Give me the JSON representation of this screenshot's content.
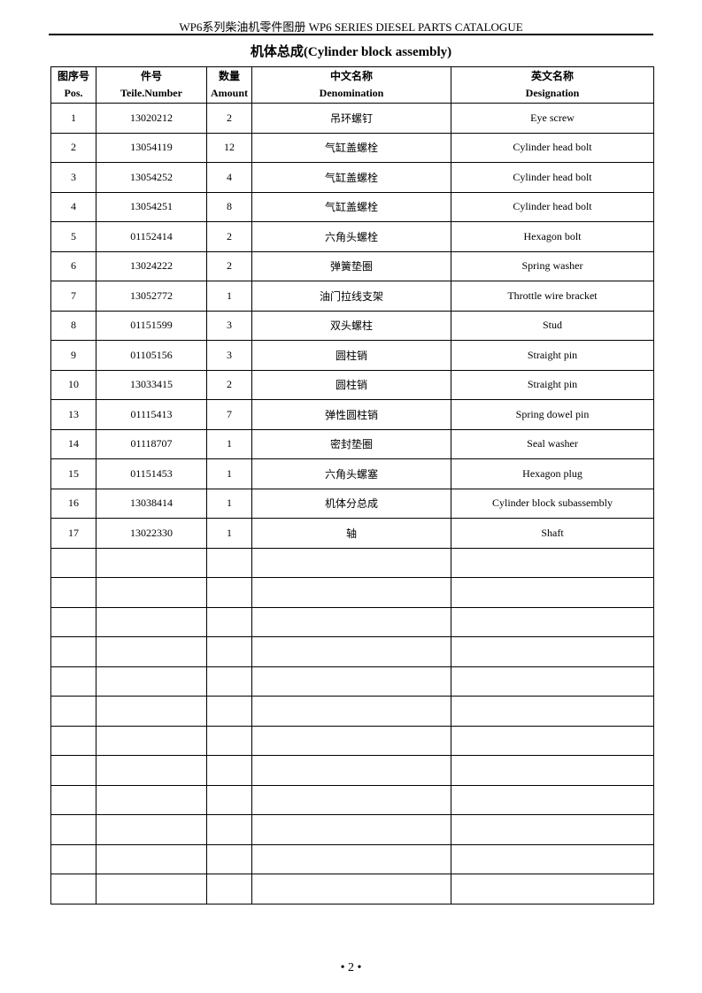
{
  "header": {
    "running_title": "WP6系列柴油机零件图册 WP6 SERIES DIESEL PARTS CATALOGUE"
  },
  "title": "机体总成(Cylinder block assembly)",
  "columns": [
    {
      "cn": "图序号",
      "en": "Pos."
    },
    {
      "cn": "件号",
      "en": "Teile.Number"
    },
    {
      "cn": "数量",
      "en": "Amount"
    },
    {
      "cn": "中文名称",
      "en": "Denomination"
    },
    {
      "cn": "英文名称",
      "en": "Designation"
    }
  ],
  "rows": [
    [
      "1",
      "13020212",
      "2",
      "吊环螺钉",
      "Eye screw"
    ],
    [
      "2",
      "13054119",
      "12",
      "气缸盖螺栓",
      "Cylinder head bolt"
    ],
    [
      "3",
      "13054252",
      "4",
      "气缸盖螺栓",
      "Cylinder head bolt"
    ],
    [
      "4",
      "13054251",
      "8",
      "气缸盖螺栓",
      "Cylinder head bolt"
    ],
    [
      "5",
      "01152414",
      "2",
      "六角头螺栓",
      "Hexagon bolt"
    ],
    [
      "6",
      "13024222",
      "2",
      "弹簧垫圈",
      "Spring washer"
    ],
    [
      "7",
      "13052772",
      "1",
      "油门拉线支架",
      "Throttle wire bracket"
    ],
    [
      "8",
      "01151599",
      "3",
      "双头螺柱",
      "Stud"
    ],
    [
      "9",
      "01105156",
      "3",
      "圆柱销",
      "Straight pin"
    ],
    [
      "10",
      "13033415",
      "2",
      "圆柱销",
      "Straight pin"
    ],
    [
      "13",
      "01115413",
      "7",
      "弹性圆柱销",
      "Spring dowel pin"
    ],
    [
      "14",
      "01118707",
      "1",
      "密封垫圈",
      "Seal washer"
    ],
    [
      "15",
      "01151453",
      "1",
      "六角头螺塞",
      "Hexagon plug"
    ],
    [
      "16",
      "13038414",
      "1",
      "机体分总成",
      "Cylinder block subassembly"
    ],
    [
      "17",
      "13022330",
      "1",
      "轴",
      "Shaft"
    ]
  ],
  "footer": {
    "page_number": "• 2 •"
  }
}
